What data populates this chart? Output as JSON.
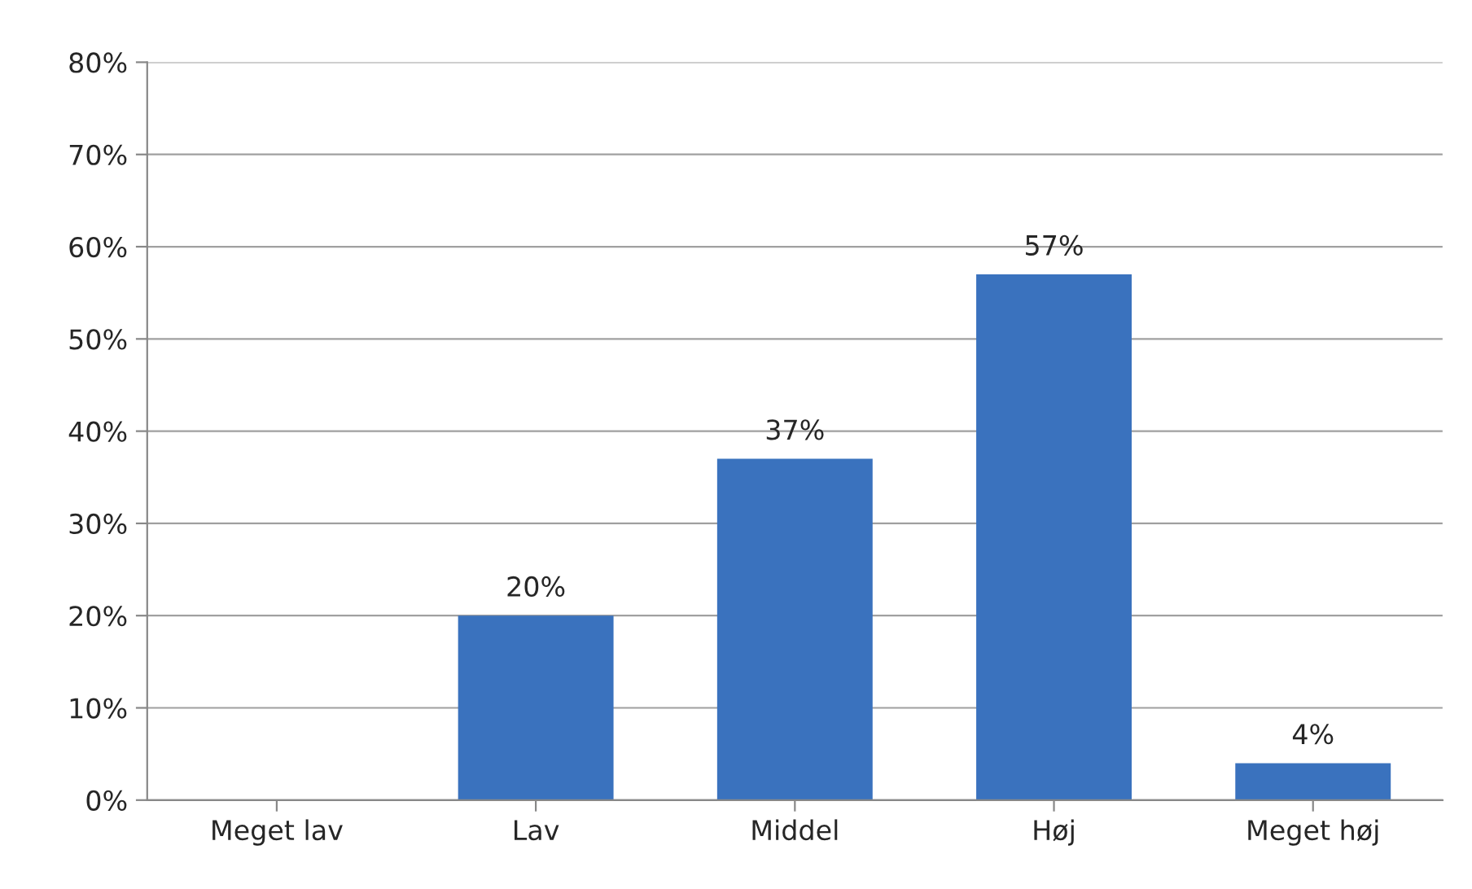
{
  "chart_data": {
    "type": "bar",
    "categories": [
      "Meget lav",
      "Lav",
      "Middel",
      "Høj",
      "Meget høj"
    ],
    "values": [
      0,
      20,
      37,
      57,
      4
    ],
    "value_labels": [
      null,
      "20%",
      "37%",
      "57%",
      "4%"
    ],
    "color": "#3a72be",
    "ylim": [
      0,
      80
    ],
    "yticks": [
      {
        "value": 0,
        "label": "0%"
      },
      {
        "value": 10,
        "label": "10%"
      },
      {
        "value": 20,
        "label": "20%"
      },
      {
        "value": 30,
        "label": "30%"
      },
      {
        "value": 40,
        "label": "40%"
      },
      {
        "value": 50,
        "label": "50%"
      },
      {
        "value": 60,
        "label": "60%"
      },
      {
        "value": 70,
        "label": "70%"
      },
      {
        "value": 80,
        "label": "80%"
      }
    ],
    "grid": "y",
    "legend": false
  }
}
